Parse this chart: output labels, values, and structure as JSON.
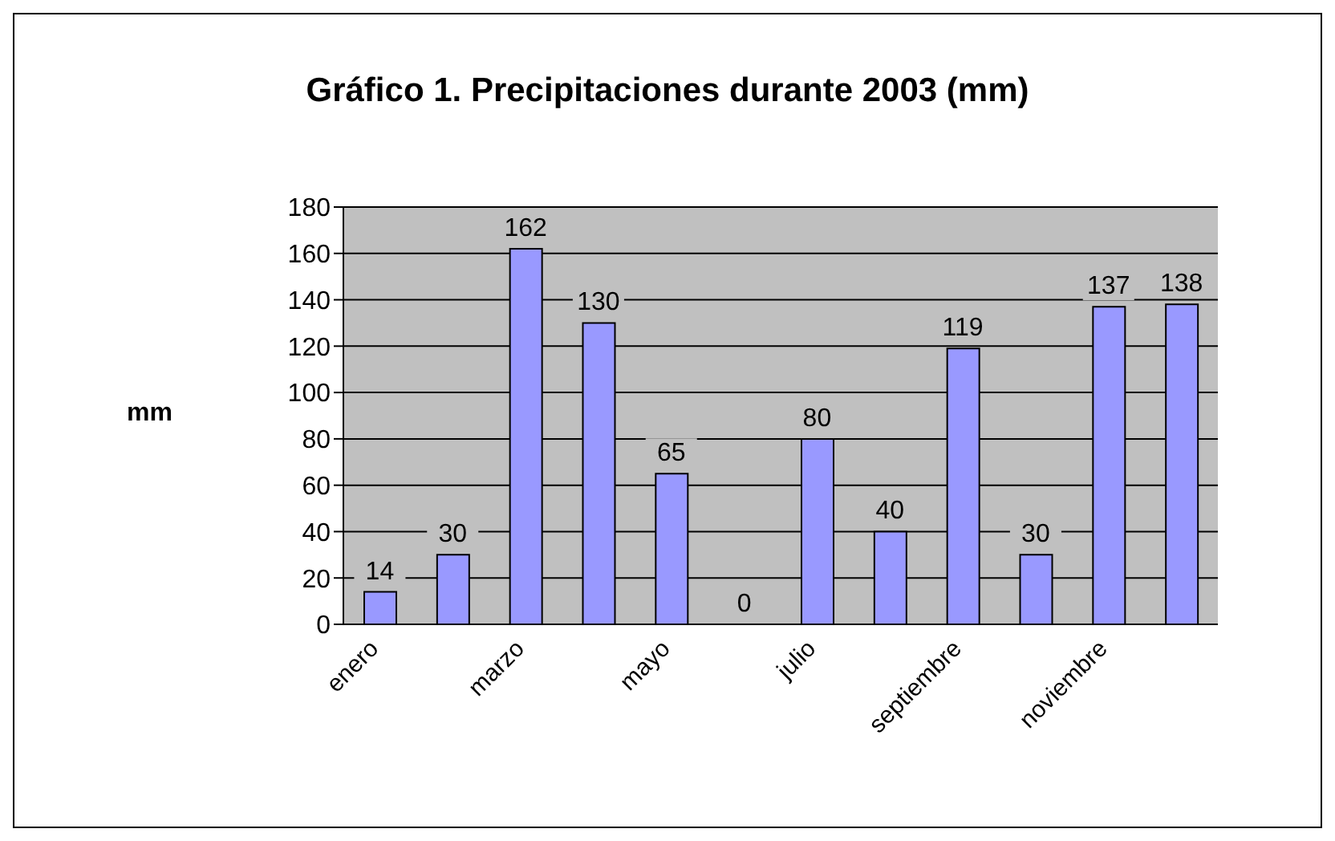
{
  "chart_data": {
    "type": "bar",
    "title": "Gráfico 1. Precipitaciones durante 2003 (mm)",
    "ylabel": "mm",
    "categories": [
      "enero",
      null,
      "marzo",
      null,
      "mayo",
      null,
      "julio",
      null,
      "septiembre",
      null,
      "noviembre",
      null
    ],
    "values": [
      14,
      30,
      162,
      130,
      65,
      0,
      80,
      40,
      119,
      30,
      137,
      138
    ],
    "color": "#9999ff",
    "ylim": [
      0,
      180
    ],
    "yticks": [
      0,
      20,
      40,
      60,
      80,
      100,
      120,
      140,
      160,
      180
    ],
    "grid": "y",
    "data_labels": true
  }
}
